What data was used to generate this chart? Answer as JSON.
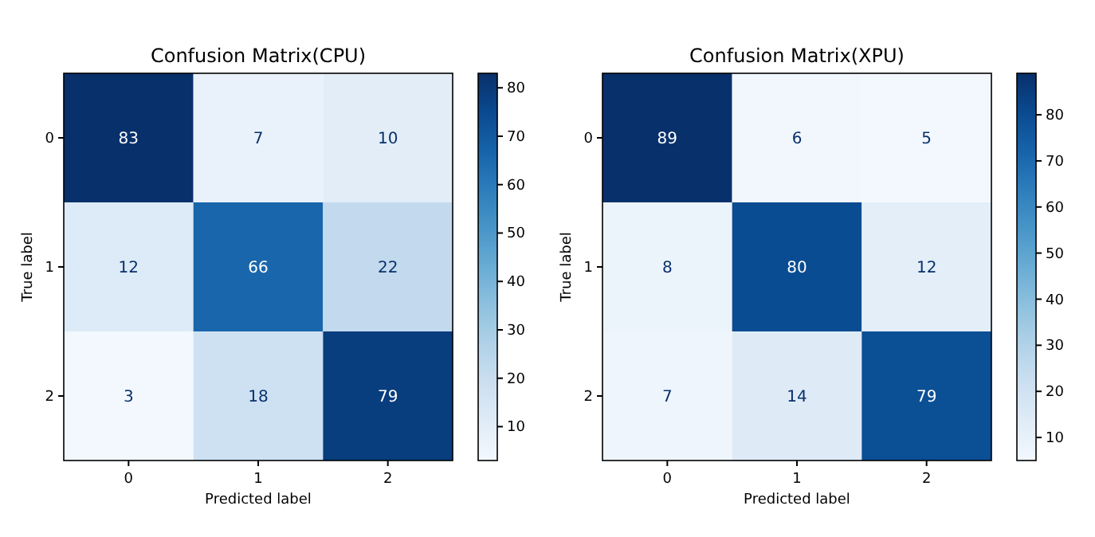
{
  "chart_data": [
    {
      "type": "heatmap",
      "title": "Confusion Matrix(CPU)",
      "xlabel": "Predicted label",
      "ylabel": "True label",
      "categories": [
        "0",
        "1",
        "2"
      ],
      "y_categories": [
        "0",
        "1",
        "2"
      ],
      "cells": [
        [
          83,
          7,
          10
        ],
        [
          12,
          66,
          22
        ],
        [
          3,
          18,
          79
        ]
      ],
      "data_labels": true,
      "clim": [
        3,
        83
      ],
      "cticks": [
        10,
        20,
        30,
        40,
        50,
        60,
        70,
        80
      ]
    },
    {
      "type": "heatmap",
      "title": "Confusion Matrix(XPU)",
      "xlabel": "Predicted label",
      "ylabel": "True label",
      "categories": [
        "0",
        "1",
        "2"
      ],
      "y_categories": [
        "0",
        "1",
        "2"
      ],
      "cells": [
        [
          89,
          6,
          5
        ],
        [
          8,
          80,
          12
        ],
        [
          7,
          14,
          79
        ]
      ],
      "data_labels": true,
      "clim": [
        5,
        89
      ],
      "cticks": [
        10,
        20,
        30,
        40,
        50,
        60,
        70,
        80
      ]
    }
  ]
}
